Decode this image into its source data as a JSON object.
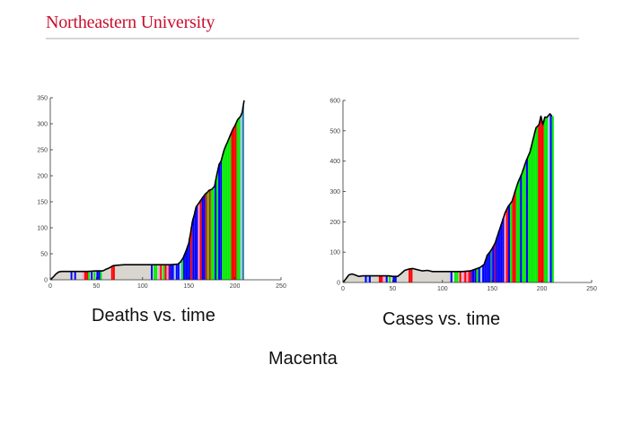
{
  "header": {
    "title": "Northeastern University",
    "accent_color": "#c8102e",
    "rule_color": "#d6d6d6"
  },
  "captions": {
    "left": "Deaths vs. time",
    "right": "Cases vs. time",
    "bottom": "Macenta"
  },
  "colors": {
    "fill_base": "#d9d5cf",
    "blue": "#0000ff",
    "red": "#ff0000",
    "green": "#00ee00",
    "pink": "#ff99cc",
    "lightblue": "#aaccff",
    "purple": "#8000a0",
    "teal": "#2080a0",
    "outline": "#000000"
  },
  "chart_data": [
    {
      "type": "area",
      "title": "Deaths vs. time",
      "xlabel": "",
      "ylabel": "",
      "xlim": [
        0,
        250
      ],
      "ylim": [
        0,
        350
      ],
      "xticks": [
        0,
        50,
        100,
        150,
        200,
        250
      ],
      "yticks": [
        0,
        50,
        100,
        150,
        200,
        250,
        300,
        350
      ],
      "grid": false,
      "legend": null,
      "x": [
        0,
        3,
        6,
        9,
        12,
        20,
        30,
        40,
        50,
        57,
        60,
        64,
        68,
        72,
        80,
        90,
        100,
        110,
        120,
        130,
        138,
        141,
        144,
        147,
        150,
        152,
        154,
        156,
        158,
        160,
        162,
        165,
        168,
        170,
        172,
        175,
        178,
        180,
        183,
        185,
        188,
        190,
        192,
        195,
        198,
        200,
        203,
        206,
        208,
        210
      ],
      "values": [
        0,
        5,
        11,
        15,
        16,
        16,
        16,
        16,
        17,
        17,
        20,
        23,
        27,
        28,
        29,
        29,
        29,
        29,
        29,
        29,
        30,
        34,
        42,
        55,
        70,
        90,
        112,
        125,
        140,
        145,
        150,
        158,
        165,
        168,
        172,
        174,
        180,
        198,
        222,
        228,
        248,
        257,
        265,
        278,
        290,
        296,
        308,
        314,
        322,
        345
      ],
      "bars": [
        {
          "x": 22,
          "c": "blue"
        },
        {
          "x": 26,
          "c": "blue"
        },
        {
          "x": 35,
          "c": "pink"
        },
        {
          "x": 37,
          "c": "red"
        },
        {
          "x": 39,
          "c": "red"
        },
        {
          "x": 41,
          "c": "green"
        },
        {
          "x": 44,
          "c": "blue"
        },
        {
          "x": 47,
          "c": "green"
        },
        {
          "x": 50,
          "c": "blue"
        },
        {
          "x": 52,
          "c": "blue"
        },
        {
          "x": 54,
          "c": "green"
        },
        {
          "x": 66,
          "c": "red"
        },
        {
          "x": 68,
          "c": "red"
        },
        {
          "x": 109,
          "c": "blue"
        },
        {
          "x": 112,
          "c": "green"
        },
        {
          "x": 114,
          "c": "green"
        },
        {
          "x": 117,
          "c": "pink"
        },
        {
          "x": 119,
          "c": "red"
        },
        {
          "x": 122,
          "c": "green"
        },
        {
          "x": 124,
          "c": "red"
        },
        {
          "x": 126,
          "c": "pink"
        },
        {
          "x": 128,
          "c": "purple"
        },
        {
          "x": 130,
          "c": "blue"
        },
        {
          "x": 132,
          "c": "blue"
        },
        {
          "x": 134,
          "c": "lightblue"
        },
        {
          "x": 136,
          "c": "blue"
        },
        {
          "x": 138,
          "c": "blue"
        },
        {
          "x": 140,
          "c": "lightblue"
        },
        {
          "x": 142,
          "c": "green"
        },
        {
          "x": 144,
          "c": "blue"
        },
        {
          "x": 146,
          "c": "blue"
        },
        {
          "x": 148,
          "c": "blue"
        },
        {
          "x": 150,
          "c": "blue"
        },
        {
          "x": 152,
          "c": "red"
        },
        {
          "x": 154,
          "c": "blue"
        },
        {
          "x": 156,
          "c": "blue"
        },
        {
          "x": 158,
          "c": "blue"
        },
        {
          "x": 160,
          "c": "pink"
        },
        {
          "x": 162,
          "c": "red"
        },
        {
          "x": 164,
          "c": "blue"
        },
        {
          "x": 166,
          "c": "blue"
        },
        {
          "x": 168,
          "c": "red"
        },
        {
          "x": 170,
          "c": "green"
        },
        {
          "x": 172,
          "c": "red"
        },
        {
          "x": 174,
          "c": "green"
        },
        {
          "x": 176,
          "c": "green"
        },
        {
          "x": 178,
          "c": "blue"
        },
        {
          "x": 180,
          "c": "green"
        },
        {
          "x": 182,
          "c": "blue"
        },
        {
          "x": 184,
          "c": "blue"
        },
        {
          "x": 186,
          "c": "green"
        },
        {
          "x": 188,
          "c": "green"
        },
        {
          "x": 190,
          "c": "green"
        },
        {
          "x": 192,
          "c": "green"
        },
        {
          "x": 194,
          "c": "green"
        },
        {
          "x": 196,
          "c": "red"
        },
        {
          "x": 198,
          "c": "red"
        },
        {
          "x": 200,
          "c": "red"
        },
        {
          "x": 202,
          "c": "green"
        },
        {
          "x": 204,
          "c": "green"
        },
        {
          "x": 206,
          "c": "lightblue"
        },
        {
          "x": 208,
          "c": "teal"
        }
      ]
    },
    {
      "type": "area",
      "title": "Cases vs. time",
      "xlabel": "",
      "ylabel": "",
      "xlim": [
        0,
        250
      ],
      "ylim": [
        0,
        600
      ],
      "xticks": [
        0,
        50,
        100,
        150,
        200,
        250
      ],
      "yticks": [
        0,
        100,
        200,
        300,
        400,
        500,
        600
      ],
      "grid": false,
      "legend": null,
      "x": [
        0,
        3,
        6,
        9,
        12,
        16,
        20,
        30,
        40,
        46,
        50,
        55,
        58,
        62,
        66,
        70,
        75,
        80,
        85,
        90,
        100,
        110,
        120,
        128,
        133,
        138,
        142,
        145,
        148,
        150,
        153,
        156,
        160,
        163,
        166,
        170,
        173,
        176,
        180,
        184,
        188,
        191,
        194,
        197,
        199,
        201,
        203,
        205,
        208,
        210
      ],
      "values": [
        0,
        12,
        25,
        28,
        25,
        20,
        22,
        22,
        22,
        22,
        20,
        20,
        28,
        40,
        44,
        46,
        42,
        38,
        40,
        36,
        36,
        36,
        36,
        38,
        44,
        50,
        60,
        90,
        102,
        112,
        130,
        160,
        200,
        230,
        250,
        268,
        300,
        330,
        360,
        400,
        430,
        470,
        510,
        520,
        548,
        520,
        545,
        544,
        556,
        548
      ],
      "bars": [
        {
          "x": 22,
          "c": "blue"
        },
        {
          "x": 24,
          "c": "lightblue"
        },
        {
          "x": 26,
          "c": "blue"
        },
        {
          "x": 36,
          "c": "red"
        },
        {
          "x": 38,
          "c": "red"
        },
        {
          "x": 40,
          "c": "pink"
        },
        {
          "x": 43,
          "c": "blue"
        },
        {
          "x": 46,
          "c": "green"
        },
        {
          "x": 50,
          "c": "blue"
        },
        {
          "x": 52,
          "c": "blue"
        },
        {
          "x": 66,
          "c": "red"
        },
        {
          "x": 68,
          "c": "red"
        },
        {
          "x": 108,
          "c": "blue"
        },
        {
          "x": 112,
          "c": "green"
        },
        {
          "x": 114,
          "c": "green"
        },
        {
          "x": 117,
          "c": "red"
        },
        {
          "x": 120,
          "c": "pink"
        },
        {
          "x": 122,
          "c": "red"
        },
        {
          "x": 124,
          "c": "pink"
        },
        {
          "x": 126,
          "c": "red"
        },
        {
          "x": 128,
          "c": "purple"
        },
        {
          "x": 130,
          "c": "blue"
        },
        {
          "x": 132,
          "c": "blue"
        },
        {
          "x": 134,
          "c": "green"
        },
        {
          "x": 136,
          "c": "blue"
        },
        {
          "x": 138,
          "c": "lightblue"
        },
        {
          "x": 140,
          "c": "blue"
        },
        {
          "x": 142,
          "c": "blue"
        },
        {
          "x": 144,
          "c": "blue"
        },
        {
          "x": 146,
          "c": "blue"
        },
        {
          "x": 148,
          "c": "teal"
        },
        {
          "x": 150,
          "c": "blue"
        },
        {
          "x": 152,
          "c": "purple"
        },
        {
          "x": 154,
          "c": "blue"
        },
        {
          "x": 156,
          "c": "blue"
        },
        {
          "x": 158,
          "c": "blue"
        },
        {
          "x": 160,
          "c": "blue"
        },
        {
          "x": 162,
          "c": "pink"
        },
        {
          "x": 164,
          "c": "red"
        },
        {
          "x": 166,
          "c": "blue"
        },
        {
          "x": 168,
          "c": "green"
        },
        {
          "x": 170,
          "c": "red"
        },
        {
          "x": 172,
          "c": "red"
        },
        {
          "x": 174,
          "c": "green"
        },
        {
          "x": 176,
          "c": "green"
        },
        {
          "x": 178,
          "c": "blue"
        },
        {
          "x": 180,
          "c": "green"
        },
        {
          "x": 182,
          "c": "green"
        },
        {
          "x": 184,
          "c": "blue"
        },
        {
          "x": 186,
          "c": "green"
        },
        {
          "x": 188,
          "c": "green"
        },
        {
          "x": 190,
          "c": "green"
        },
        {
          "x": 192,
          "c": "green"
        },
        {
          "x": 194,
          "c": "green"
        },
        {
          "x": 196,
          "c": "red"
        },
        {
          "x": 198,
          "c": "red"
        },
        {
          "x": 200,
          "c": "red"
        },
        {
          "x": 202,
          "c": "green"
        },
        {
          "x": 204,
          "c": "green"
        },
        {
          "x": 206,
          "c": "lightblue"
        },
        {
          "x": 208,
          "c": "blue"
        },
        {
          "x": 210,
          "c": "green"
        }
      ]
    }
  ]
}
